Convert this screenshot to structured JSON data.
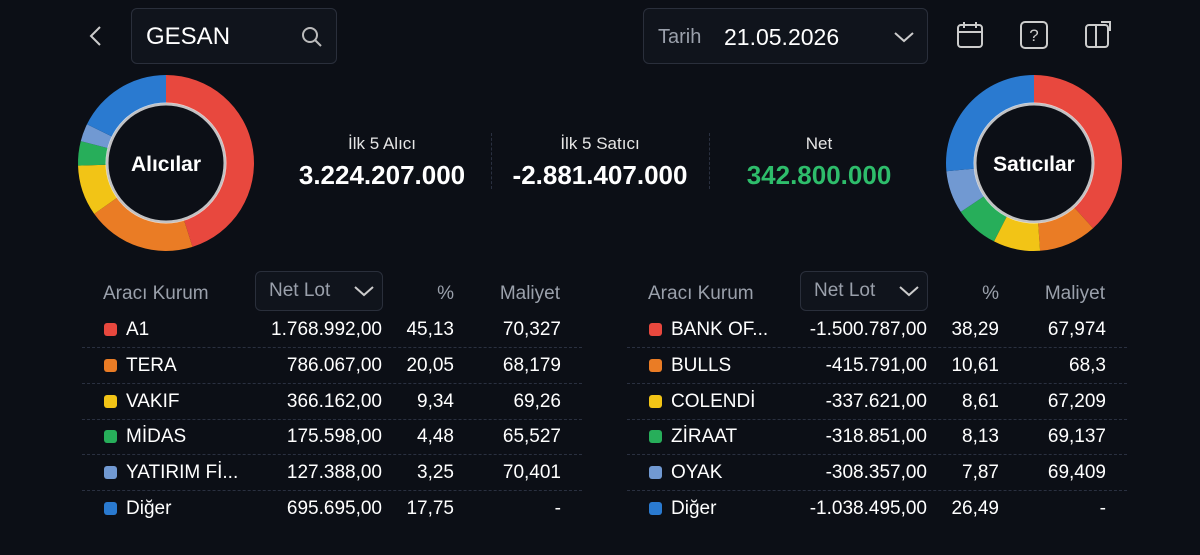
{
  "header": {
    "search": "GESAN",
    "date_label": "Tarih",
    "date": "21.05.2026"
  },
  "summary": [
    {
      "label": "İlk 5 Alıcı",
      "value": "3.224.207.000"
    },
    {
      "label": "İlk 5 Satıcı",
      "value": "-2.881.407.000"
    },
    {
      "label": "Net",
      "value": "342.800.000"
    }
  ],
  "buyers": {
    "title": "Alıcılar",
    "columns": [
      "Aracı Kurum",
      "Net Lot",
      "%",
      "Maliyet"
    ],
    "rows": [
      {
        "name": "A1",
        "color": "#e8483e",
        "net_lot": "1.768.992,00",
        "pct": {
          "value": 45.13,
          "label": "45,13"
        },
        "cost": "70,327"
      },
      {
        "name": "TERA",
        "color": "#ea7c25",
        "net_lot": "786.067,00",
        "pct": {
          "value": 20.05,
          "label": "20,05"
        },
        "cost": "68,179"
      },
      {
        "name": "VAKIF",
        "color": "#f2c416",
        "net_lot": "366.162,00",
        "pct": {
          "value": 9.34,
          "label": "9,34"
        },
        "cost": "69,26"
      },
      {
        "name": "MİDAS",
        "color": "#27ae5a",
        "net_lot": "175.598,00",
        "pct": {
          "value": 4.48,
          "label": "4,48"
        },
        "cost": "65,527"
      },
      {
        "name": "YATIRIM Fİ...",
        "color": "#7199d2",
        "net_lot": "127.388,00",
        "pct": {
          "value": 3.25,
          "label": "3,25"
        },
        "cost": "70,401"
      },
      {
        "name": "Diğer",
        "color": "#2a7ad0",
        "net_lot": "695.695,00",
        "pct": {
          "value": 17.75,
          "label": "17,75"
        },
        "cost": "-"
      }
    ]
  },
  "sellers": {
    "title": "Satıcılar",
    "columns": [
      "Aracı Kurum",
      "Net Lot",
      "%",
      "Maliyet"
    ],
    "rows": [
      {
        "name": "BANK OF...",
        "color": "#e8483e",
        "net_lot": "-1.500.787,00",
        "pct": {
          "value": 38.29,
          "label": "38,29"
        },
        "cost": "67,974"
      },
      {
        "name": "BULLS",
        "color": "#ea7c25",
        "net_lot": "-415.791,00",
        "pct": {
          "value": 10.61,
          "label": "10,61"
        },
        "cost": "68,3"
      },
      {
        "name": "COLENDİ",
        "color": "#f2c416",
        "net_lot": "-337.621,00",
        "pct": {
          "value": 8.61,
          "label": "8,61"
        },
        "cost": "67,209"
      },
      {
        "name": "ZİRAAT",
        "color": "#27ae5a",
        "net_lot": "-318.851,00",
        "pct": {
          "value": 8.13,
          "label": "8,13"
        },
        "cost": "69,137"
      },
      {
        "name": "OYAK",
        "color": "#7199d2",
        "net_lot": "-308.357,00",
        "pct": {
          "value": 7.87,
          "label": "7,87"
        },
        "cost": "69,409"
      },
      {
        "name": "Diğer",
        "color": "#2a7ad0",
        "net_lot": "-1.038.495,00",
        "pct": {
          "value": 26.49,
          "label": "26,49"
        },
        "cost": "-"
      }
    ]
  }
}
